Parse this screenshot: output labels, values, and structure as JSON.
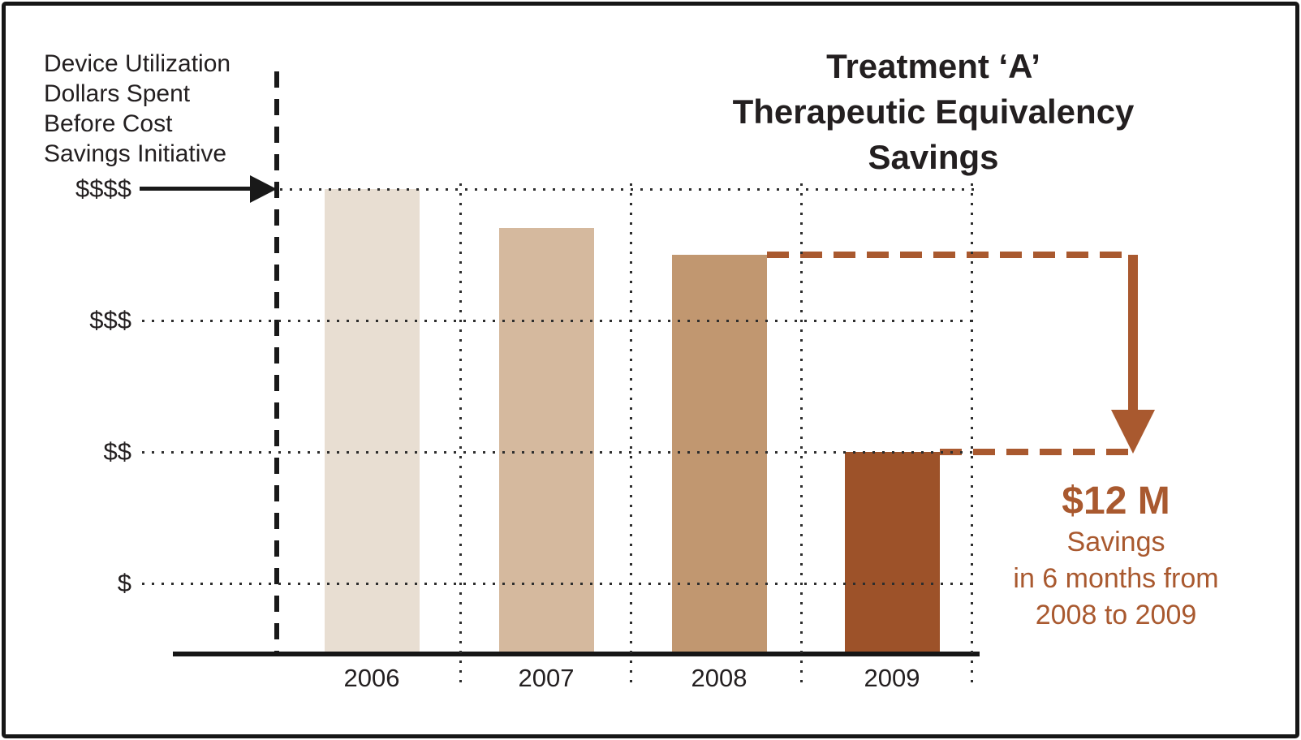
{
  "figure": {
    "title_lines": [
      "Treatment ‘A’",
      "Therapeutic Equivalency",
      "Savings"
    ]
  },
  "chart_data": {
    "type": "bar",
    "title": "Treatment ‘A’ Therapeutic Equivalency Savings",
    "categories": [
      "2006",
      "2007",
      "2008",
      "2009"
    ],
    "values": [
      4.0,
      3.7,
      3.5,
      2.0
    ],
    "value_units": "qualitative dollar level ($ = 1, $$ = 2, $$$ = 3, $$$$ = 4)",
    "y_ticks": [
      {
        "label": "$$$$",
        "value": 4
      },
      {
        "label": "$$$",
        "value": 3
      },
      {
        "label": "$$",
        "value": 2
      },
      {
        "label": "$",
        "value": 1
      }
    ],
    "bar_colors": [
      "#e8ded2",
      "#d5b99e",
      "#c19770",
      "#9d5229"
    ],
    "grid": true,
    "legend": false,
    "annotations": {
      "before_note_lines": [
        "Device Utilization",
        "Dollars Spent",
        "Before Cost",
        "Savings Initiative"
      ],
      "before_marker": "dashed vertical line with arrow at $$$$ level",
      "savings": {
        "amount": "$12 M",
        "lines": [
          "Savings",
          "in 6 months from",
          "2008 to 2009"
        ],
        "from_category": "2008",
        "to_category": "2009"
      }
    }
  },
  "colors": {
    "text": "#231f20",
    "annotation_brown": "#a9592f",
    "grid_dot": "#2e2e2e",
    "axis": "#161616"
  }
}
